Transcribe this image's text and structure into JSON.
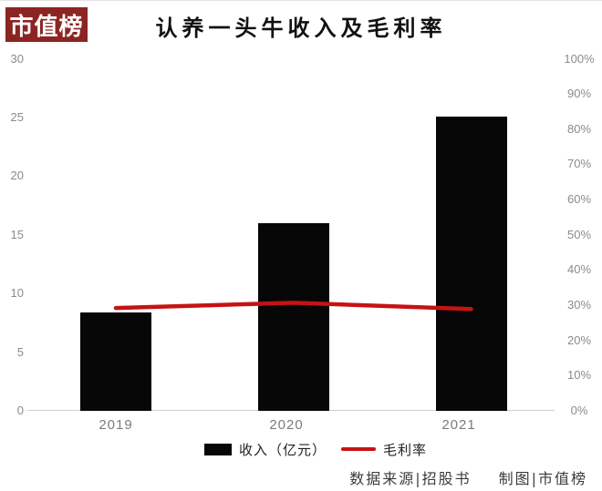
{
  "logo": {
    "text": "市值榜"
  },
  "title": "认养一头牛收入及毛利率",
  "chart_data": {
    "type": "combo-bar-line",
    "title": "认养一头牛收入及毛利率",
    "categories": [
      "2019",
      "2020",
      "2021"
    ],
    "series": [
      {
        "name": "收入（亿元）",
        "type": "bar",
        "axis": "left",
        "values": [
          8.4,
          16,
          25.1
        ],
        "color": "#070707"
      },
      {
        "name": "毛利率",
        "type": "line",
        "axis": "right",
        "values": [
          29.2,
          30.7,
          28.9
        ],
        "unit": "%",
        "color": "#c51313"
      }
    ],
    "left_axis": {
      "ticks": [
        30,
        25,
        20,
        15,
        10,
        5,
        0
      ],
      "range": [
        0,
        30
      ]
    },
    "right_axis": {
      "ticks": [
        "100%",
        "90%",
        "80%",
        "70%",
        "60%",
        "50%",
        "40%",
        "30%",
        "20%",
        "10%",
        "0%"
      ],
      "range": [
        0,
        100
      ]
    },
    "grid": false,
    "legend_position": "bottom"
  },
  "footer": {
    "source": "数据来源|招股书",
    "credit": "制图|市值榜"
  },
  "colors": {
    "brand": "#8c2522",
    "bar": "#070707",
    "line": "#c51313",
    "tick": "#8b8b8b"
  }
}
